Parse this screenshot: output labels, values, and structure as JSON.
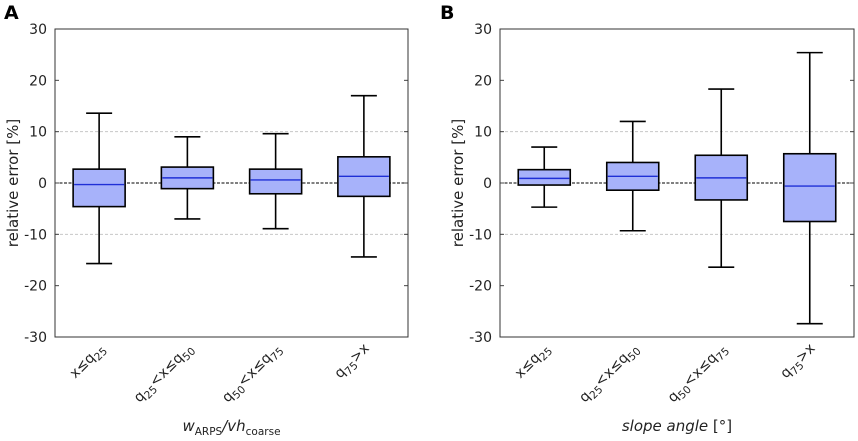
{
  "chart_data": [
    {
      "type": "box",
      "panel": "A",
      "ylabel": "relative error [%]",
      "xlabel_parts": [
        {
          "text": "w",
          "style": "italic",
          "sub": false
        },
        {
          "text": "ARPS",
          "style": "normal",
          "sub": true
        },
        {
          "text": "/vh",
          "style": "italic",
          "sub": false
        },
        {
          "text": "coarse",
          "style": "normal",
          "sub": true
        }
      ],
      "ylim": [
        -30,
        30
      ],
      "yticks": [
        -30,
        -20,
        -10,
        0,
        10,
        20,
        30
      ],
      "grid_lines": [
        -10,
        10
      ],
      "categories": [
        [
          {
            "t": "x≤q",
            "s": false
          },
          {
            "t": "25",
            "s": true
          }
        ],
        [
          {
            "t": "q",
            "s": false
          },
          {
            "t": "25",
            "s": true
          },
          {
            "t": "<x≤q",
            "s": false
          },
          {
            "t": "50",
            "s": true
          }
        ],
        [
          {
            "t": "q",
            "s": false
          },
          {
            "t": "50",
            "s": true
          },
          {
            "t": "<x≤q",
            "s": false
          },
          {
            "t": "75",
            "s": true
          }
        ],
        [
          {
            "t": "q",
            "s": false
          },
          {
            "t": "75",
            "s": true
          },
          {
            "t": ">x",
            "s": false
          }
        ]
      ],
      "boxes": [
        {
          "whisker_low": -15.7,
          "q1": -4.6,
          "median": -0.3,
          "q3": 2.7,
          "whisker_high": 13.6
        },
        {
          "whisker_low": -7.0,
          "q1": -1.1,
          "median": 1.0,
          "q3": 3.1,
          "whisker_high": 9.0
        },
        {
          "whisker_low": -8.9,
          "q1": -2.1,
          "median": 0.6,
          "q3": 2.7,
          "whisker_high": 9.6
        },
        {
          "whisker_low": -14.4,
          "q1": -2.6,
          "median": 1.3,
          "q3": 5.1,
          "whisker_high": 17.0
        }
      ]
    },
    {
      "type": "box",
      "panel": "B",
      "ylabel": "relative error [%]",
      "xlabel_parts": [
        {
          "text": "slope angle",
          "style": "italic",
          "sub": false
        },
        {
          "text": " [°]",
          "style": "normal",
          "sub": false
        }
      ],
      "ylim": [
        -30,
        30
      ],
      "yticks": [
        -30,
        -20,
        -10,
        0,
        10,
        20,
        30
      ],
      "grid_lines": [
        -10,
        10
      ],
      "categories": [
        [
          {
            "t": "x≤q",
            "s": false
          },
          {
            "t": "25",
            "s": true
          }
        ],
        [
          {
            "t": "q",
            "s": false
          },
          {
            "t": "25",
            "s": true
          },
          {
            "t": "<x≤q",
            "s": false
          },
          {
            "t": "50",
            "s": true
          }
        ],
        [
          {
            "t": "q",
            "s": false
          },
          {
            "t": "50",
            "s": true
          },
          {
            "t": "<x≤q",
            "s": false
          },
          {
            "t": "75",
            "s": true
          }
        ],
        [
          {
            "t": "q",
            "s": false
          },
          {
            "t": "75",
            "s": true
          },
          {
            "t": ">x",
            "s": false
          }
        ]
      ],
      "boxes": [
        {
          "whisker_low": -4.7,
          "q1": -0.4,
          "median": 0.9,
          "q3": 2.6,
          "whisker_high": 7.0
        },
        {
          "whisker_low": -9.3,
          "q1": -1.4,
          "median": 1.3,
          "q3": 4.0,
          "whisker_high": 12.0
        },
        {
          "whisker_low": -16.4,
          "q1": -3.3,
          "median": 1.0,
          "q3": 5.4,
          "whisker_high": 18.3
        },
        {
          "whisker_low": -27.4,
          "q1": -7.5,
          "median": -0.6,
          "q3": 5.7,
          "whisker_high": 25.4
        }
      ]
    }
  ],
  "colors": {
    "box_fill": "#a7b2fa",
    "median": "#1f2fd6",
    "stroke": "#000000",
    "grid": "#c8c8c8",
    "zero_line": "#000000"
  }
}
